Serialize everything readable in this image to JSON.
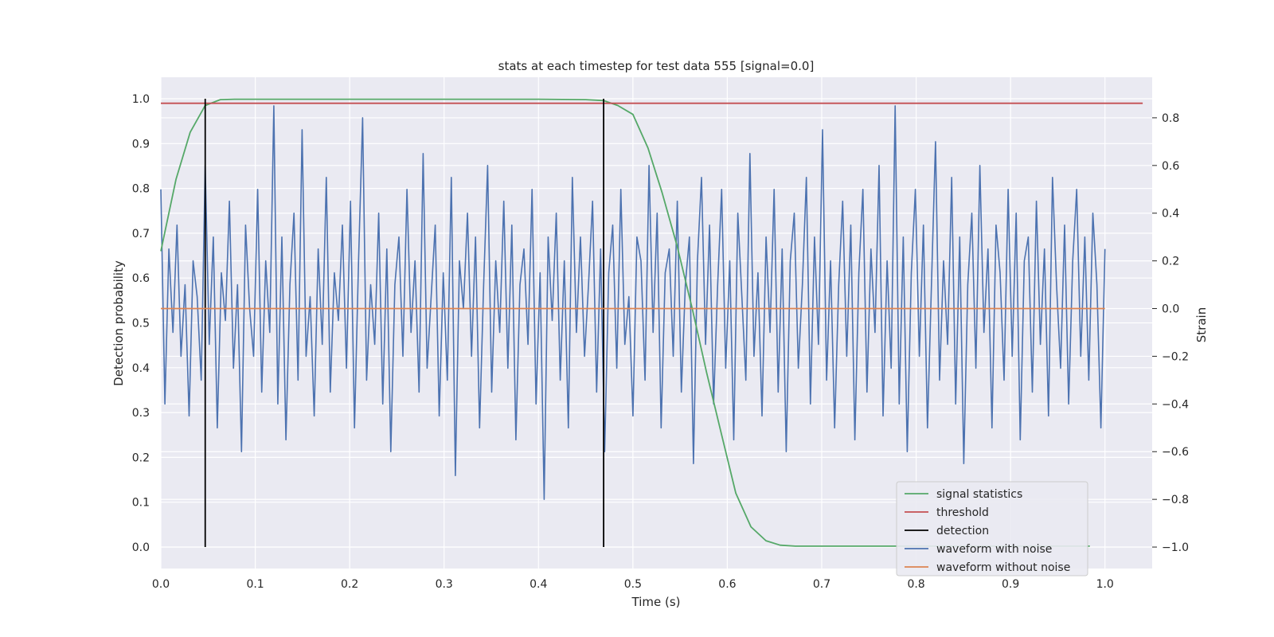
{
  "chart_data": {
    "type": "line",
    "title": "stats at each timestep for test data 555 [signal=0.0]",
    "xlabel": "Time (s)",
    "ylabel_left": "Detection probability",
    "ylabel_right": "Strain",
    "xlim": [
      0.0,
      1.05
    ],
    "ylim_left": [
      -0.048,
      1.048
    ],
    "ylim_right": [
      -1.09,
      0.97
    ],
    "x_ticks": [
      "0.0",
      "0.1",
      "0.2",
      "0.3",
      "0.4",
      "0.5",
      "0.6",
      "0.7",
      "0.8",
      "0.9",
      "1.0"
    ],
    "y_left_ticks": [
      "0.0",
      "0.1",
      "0.2",
      "0.3",
      "0.4",
      "0.5",
      "0.6",
      "0.7",
      "0.8",
      "0.9",
      "1.0"
    ],
    "y_right_ticks": [
      "−1.0",
      "−0.8",
      "−0.6",
      "−0.4",
      "−0.2",
      "0.0",
      "0.2",
      "0.4",
      "0.6",
      "0.8"
    ],
    "grid": true,
    "legend_position": "lower-right",
    "series": [
      {
        "name": "signal statistics",
        "axis": "left",
        "color": "#55a868",
        "x": [
          0.0,
          0.016,
          0.031,
          0.047,
          0.063,
          0.078,
          0.1,
          0.2,
          0.3,
          0.4,
          0.45,
          0.469,
          0.484,
          0.5,
          0.516,
          0.531,
          0.547,
          0.563,
          0.578,
          0.594,
          0.609,
          0.625,
          0.641,
          0.656,
          0.672,
          0.688,
          0.8,
          0.9,
          0.984
        ],
        "y": [
          0.66,
          0.82,
          0.925,
          0.985,
          0.998,
          0.999,
          0.999,
          0.999,
          0.999,
          0.999,
          0.998,
          0.996,
          0.985,
          0.965,
          0.89,
          0.79,
          0.67,
          0.53,
          0.39,
          0.25,
          0.12,
          0.045,
          0.014,
          0.004,
          0.002,
          0.002,
          0.002,
          0.002,
          0.002
        ]
      },
      {
        "name": "threshold",
        "axis": "left",
        "color": "#c44e52",
        "x": [
          0.0,
          1.04
        ],
        "y": [
          0.99,
          0.99
        ]
      },
      {
        "name": "detection",
        "axis": "left",
        "color": "#000000",
        "type": "vlines",
        "x": [
          0.047,
          0.469
        ],
        "y_range": [
          0.0,
          1.0
        ]
      },
      {
        "name": "waveform with noise",
        "axis": "right",
        "color": "#4c72b0",
        "x_range": [
          0.0,
          1.0
        ],
        "y": [
          0.5,
          -0.4,
          0.25,
          -0.1,
          0.35,
          -0.2,
          0.1,
          -0.45,
          0.2,
          0.05,
          -0.3,
          0.6,
          -0.15,
          0.3,
          -0.5,
          0.15,
          -0.05,
          0.45,
          -0.25,
          0.1,
          -0.6,
          0.35,
          0.0,
          -0.2,
          0.5,
          -0.35,
          0.2,
          -0.1,
          0.85,
          -0.4,
          0.3,
          -0.55,
          0.1,
          0.4,
          -0.3,
          0.75,
          -0.2,
          0.05,
          -0.45,
          0.25,
          -0.15,
          0.55,
          -0.35,
          0.15,
          -0.05,
          0.35,
          -0.25,
          0.45,
          -0.5,
          0.2,
          0.8,
          -0.3,
          0.1,
          -0.15,
          0.4,
          -0.4,
          0.25,
          -0.6,
          0.1,
          0.3,
          -0.2,
          0.5,
          -0.1,
          0.2,
          -0.35,
          0.65,
          -0.25,
          0.05,
          0.35,
          -0.45,
          0.15,
          -0.3,
          0.55,
          -0.7,
          0.2,
          0.0,
          0.4,
          -0.2,
          0.3,
          -0.5,
          0.1,
          0.6,
          -0.35,
          0.2,
          -0.1,
          0.45,
          -0.25,
          0.35,
          -0.55,
          0.1,
          0.25,
          -0.15,
          0.5,
          -0.4,
          0.15,
          -0.8,
          0.3,
          -0.05,
          0.4,
          -0.3,
          0.2,
          -0.5,
          0.55,
          -0.1,
          0.3,
          -0.2,
          0.1,
          0.45,
          -0.35,
          0.25,
          -0.6,
          0.15,
          0.35,
          -0.25,
          0.5,
          -0.15,
          0.05,
          -0.45,
          0.3,
          0.2,
          -0.3,
          0.6,
          -0.1,
          0.4,
          -0.5,
          0.15,
          0.25,
          -0.2,
          0.45,
          -0.35,
          0.1,
          0.3,
          -0.65,
          0.2,
          0.55,
          -0.15,
          0.35,
          -0.4,
          0.1,
          0.5,
          -0.25,
          0.2,
          -0.55,
          0.4,
          0.05,
          -0.3,
          0.65,
          -0.2,
          0.15,
          -0.45,
          0.3,
          -0.1,
          0.5,
          -0.35,
          0.25,
          -0.6,
          0.2,
          0.4,
          -0.25,
          0.1,
          0.55,
          -0.4,
          0.3,
          -0.15,
          0.75,
          -0.3,
          0.2,
          -0.5,
          0.1,
          0.45,
          -0.2,
          0.35,
          -0.55,
          0.15,
          0.5,
          -0.35,
          0.25,
          -0.1,
          0.6,
          -0.45,
          0.2,
          -0.25,
          0.85,
          -0.4,
          0.3,
          -0.6,
          0.15,
          0.5,
          -0.2,
          0.35,
          -0.5,
          0.1,
          0.7,
          -0.3,
          0.2,
          -0.15,
          0.55,
          -0.4,
          0.3,
          -0.65,
          0.1,
          0.4,
          -0.25,
          0.6,
          -0.1,
          0.25,
          -0.5,
          0.35,
          0.15,
          -0.3,
          0.5,
          -0.2,
          0.4,
          -0.55,
          0.2,
          0.3,
          -0.35,
          0.45,
          -0.15,
          0.25,
          -0.45,
          0.55,
          0.1,
          -0.25,
          0.35,
          -0.4,
          0.2,
          0.5,
          -0.2,
          0.3,
          -0.3,
          0.4,
          0.1,
          -0.5,
          0.25
        ]
      },
      {
        "name": "waveform without noise",
        "axis": "right",
        "color": "#dd8452",
        "x": [
          0.0,
          1.0
        ],
        "y": [
          0.0,
          0.0
        ]
      }
    ]
  }
}
